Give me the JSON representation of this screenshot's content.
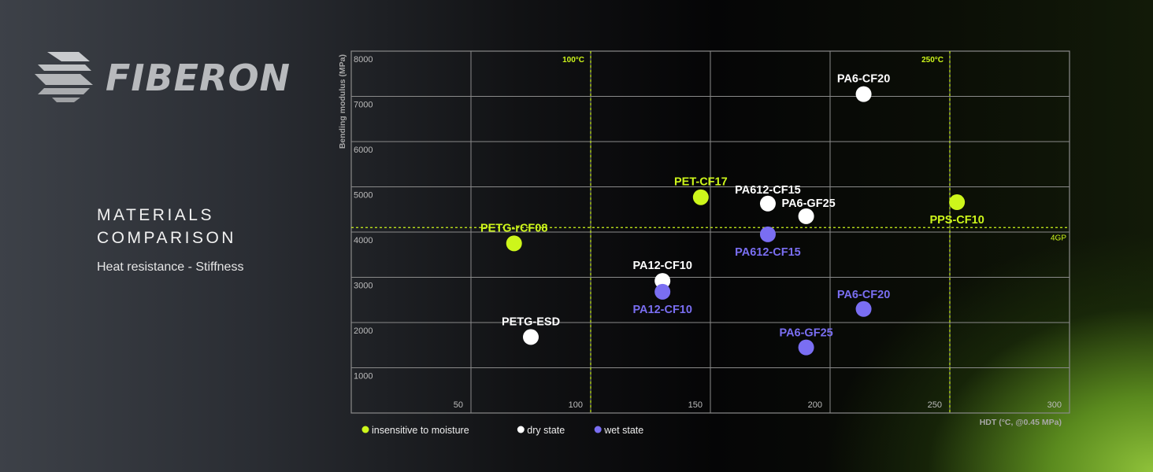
{
  "brand": {
    "name": "FIBERON",
    "logo_icon": "fiberon-logo-icon"
  },
  "heading": {
    "line1": "MATERIALS",
    "line2": "COMPARISON"
  },
  "subtitle": "Heat resistance - Stiffness",
  "colors": {
    "insensitive": "#cdf61b",
    "dry": "#ffffff",
    "wet": "#7a6ef2",
    "grid": "#8a8a8a",
    "reference": "#cdf61b"
  },
  "chart_data": {
    "type": "scatter",
    "xlabel": "HDT (°C, @0.45 MPa)",
    "ylabel": "Bending modulus (MPa)",
    "xlim": [
      0,
      300
    ],
    "ylim": [
      0,
      8000
    ],
    "x_ticks": [
      50,
      100,
      150,
      200,
      250,
      300
    ],
    "y_ticks": [
      1000,
      2000,
      3000,
      4000,
      5000,
      6000,
      7000,
      8000
    ],
    "grid": true,
    "reference_lines": [
      {
        "axis": "x",
        "value": 100,
        "label": "100°C"
      },
      {
        "axis": "x",
        "value": 250,
        "label": "250°C"
      },
      {
        "axis": "y",
        "value": 4100,
        "label": "4GP"
      }
    ],
    "legend_position": "bottom-left",
    "series": [
      {
        "name": "insensitive to moisture",
        "color": "#cdf61b",
        "points": [
          {
            "label": "PETG-rCF08",
            "x": 68,
            "y": 3750
          },
          {
            "label": "PET-CF17",
            "x": 146,
            "y": 4770
          },
          {
            "label": "PPS-CF10",
            "x": 253,
            "y": 4660
          }
        ]
      },
      {
        "name": "dry state",
        "color": "#ffffff",
        "points": [
          {
            "label": "PETG-ESD",
            "x": 75,
            "y": 1680
          },
          {
            "label": "PA12-CF10",
            "x": 130,
            "y": 2920
          },
          {
            "label": "PA612-CF15",
            "x": 174,
            "y": 4630
          },
          {
            "label": "PA6-GF25",
            "x": 190,
            "y": 4350
          },
          {
            "label": "PA6-CF20",
            "x": 214,
            "y": 7050
          }
        ]
      },
      {
        "name": "wet state",
        "color": "#7a6ef2",
        "points": [
          {
            "label": "PA12-CF10",
            "x": 130,
            "y": 2680
          },
          {
            "label": "PA612-CF15",
            "x": 174,
            "y": 3950
          },
          {
            "label": "PA6-GF25",
            "x": 190,
            "y": 1450
          },
          {
            "label": "PA6-CF20",
            "x": 214,
            "y": 2300
          }
        ]
      }
    ]
  }
}
